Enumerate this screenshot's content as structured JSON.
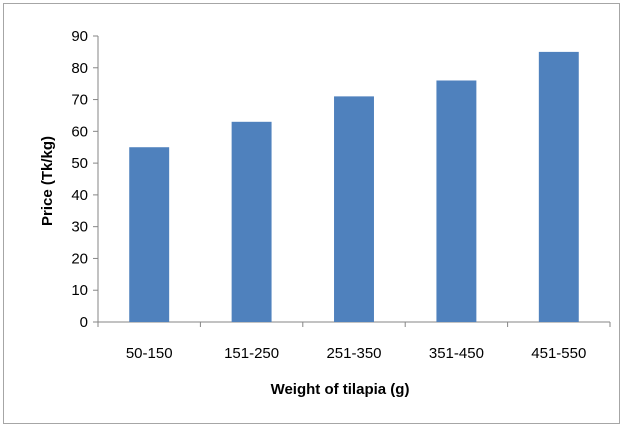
{
  "chart_data": {
    "type": "bar",
    "title": "",
    "xlabel": "Weight of tilapia (g)",
    "ylabel": "Price (Tk/kg)",
    "categories": [
      "50-150",
      "151-250",
      "251-350",
      "351-450",
      "451-550"
    ],
    "values": [
      55,
      63,
      71,
      76,
      85
    ],
    "ylim": [
      0,
      90
    ],
    "yticks": [
      0,
      10,
      20,
      30,
      40,
      50,
      60,
      70,
      80,
      90
    ],
    "grid": false,
    "legend": "none",
    "bar_color": "#4f81bd",
    "axis_color": "#868686"
  }
}
